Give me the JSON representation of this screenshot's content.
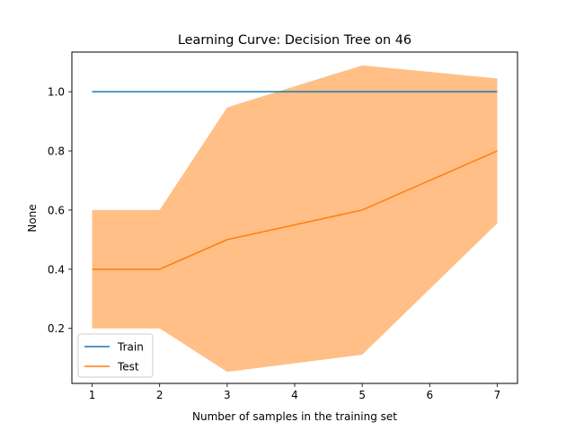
{
  "chart_data": {
    "type": "line",
    "title": "Learning Curve: Decision Tree on 46",
    "xlabel": "Number of samples in the training set",
    "ylabel": "None",
    "xlim": [
      0.7,
      7.3
    ],
    "ylim": [
      0.014,
      1.134
    ],
    "x_ticks": [
      1,
      2,
      3,
      4,
      5,
      6,
      7
    ],
    "y_ticks": [
      0.2,
      0.4,
      0.6,
      0.8,
      1.0
    ],
    "y_tick_labels": [
      "0.2",
      "0.4",
      "0.6",
      "0.8",
      "1.0"
    ],
    "x": [
      1,
      2,
      3,
      5,
      7
    ],
    "series": [
      {
        "name": "Train",
        "color": "#1f77b4",
        "values": [
          1.0,
          1.0,
          1.0,
          1.0,
          1.0
        ]
      },
      {
        "name": "Test",
        "color": "#ff7f0e",
        "values": [
          0.4,
          0.4,
          0.5,
          0.6,
          0.8
        ],
        "band_lower": [
          0.2,
          0.2,
          0.053,
          0.111,
          0.555
        ],
        "band_upper": [
          0.6,
          0.6,
          0.947,
          1.089,
          1.045
        ],
        "band_color": "#ffbf86"
      }
    ],
    "legend": {
      "position": "lower-left",
      "entries": [
        "Train",
        "Test"
      ]
    },
    "grid": false
  }
}
